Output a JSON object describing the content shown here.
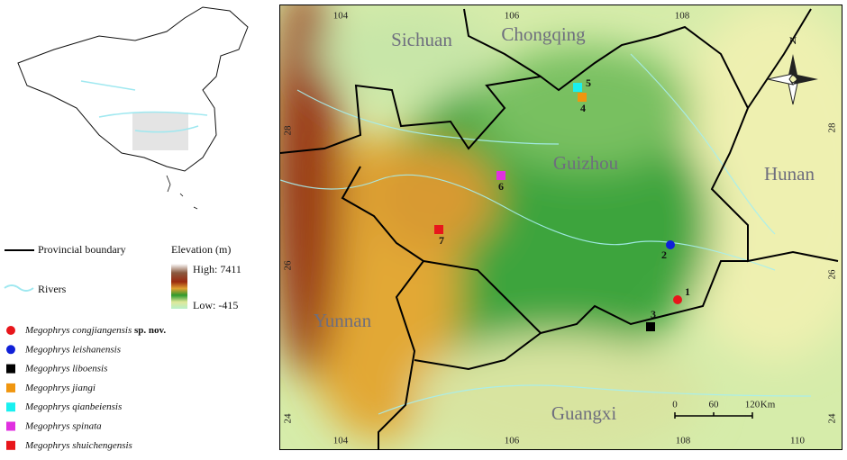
{
  "legend": {
    "boundary": "Provincial boundary",
    "rivers": "Rivers",
    "elevation_title": "Elevation (m)",
    "high": "High: 7411",
    "low": "Low: -415"
  },
  "species": [
    {
      "name": "Megophrys congjiangensis",
      "suffix": "sp. nov.",
      "color": "#e8161b",
      "shape": "circle"
    },
    {
      "name": "Megophrys leishanensis",
      "color": "#1020d8",
      "shape": "circle"
    },
    {
      "name": "Megophrys liboensis",
      "color": "#000000",
      "shape": "square"
    },
    {
      "name": "Megophrys jiangi",
      "color": "#f0960f",
      "shape": "square"
    },
    {
      "name": "Megophrys qianbeiensis",
      "color": "#19f0f0",
      "shape": "square"
    },
    {
      "name": "Megophrys spinata",
      "color": "#e030e0",
      "shape": "square"
    },
    {
      "name": "Megophrys shuichengensis",
      "color": "#e8161b",
      "shape": "square"
    }
  ],
  "map": {
    "provinces": [
      "Sichuan",
      "Chongqing",
      "Guizhou",
      "Hunan",
      "Yunnan",
      "Guangxi"
    ],
    "lon_ticks": [
      "104",
      "106",
      "108",
      "110"
    ],
    "lat_ticks": [
      "28",
      "26",
      "24"
    ],
    "north": "N",
    "scale": [
      "0",
      "60",
      "120",
      "Km"
    ]
  },
  "sites": [
    {
      "label": "1",
      "color": "#e8161b",
      "shape": "circle"
    },
    {
      "label": "2",
      "color": "#1020d8",
      "shape": "circle"
    },
    {
      "label": "3",
      "color": "#000000",
      "shape": "square"
    },
    {
      "label": "4",
      "color": "#f0960f",
      "shape": "square"
    },
    {
      "label": "5",
      "color": "#19f0f0",
      "shape": "square"
    },
    {
      "label": "6",
      "color": "#e030e0",
      "shape": "square"
    },
    {
      "label": "7",
      "color": "#e8161b",
      "shape": "square"
    }
  ]
}
